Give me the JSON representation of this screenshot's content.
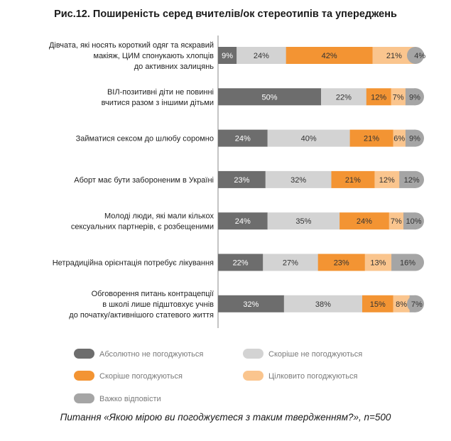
{
  "title": "Рис.12. Поширеність серед вчителів/ок стереотипів та упереджень",
  "caption": "Питання «Якою мірою ви погоджуєтеся з таким твердженням?», n=500",
  "chart_data": {
    "type": "bar",
    "orientation": "horizontal",
    "stacked": true,
    "percent": true,
    "categories": [
      [
        "Дівчата, які носять короткий одяг та яскравий",
        "макіяж, ЦИМ спонукають хлопців",
        "до активних залицянь"
      ],
      [
        "ВІЛ-позитивні діти не повинні",
        "вчитися разом з іншими дітьми"
      ],
      [
        "Займатися сексом до шлюбу соромно"
      ],
      [
        "Аборт має бути забороненим в Україні"
      ],
      [
        "Молоді люди, які мали кількох",
        "сексуальних партнерів, є розбещеними"
      ],
      [
        "Нетрадиційна орієнтація потребує лікування"
      ],
      [
        "Обговорення питань контрацепції",
        "в школі лише підштовхує учнів",
        "до початку/активнішого статевого життя"
      ]
    ],
    "series": [
      {
        "name": "Абсолютно не погоджуються",
        "color": "#6d6d6d",
        "label_color": "#ffffff",
        "values": [
          9,
          50,
          24,
          23,
          24,
          22,
          32
        ]
      },
      {
        "name": "Скоріше не погоджуються",
        "color": "#d3d3d3",
        "label_color": "#333333",
        "values": [
          24,
          22,
          40,
          32,
          35,
          27,
          38
        ]
      },
      {
        "name": "Скоріше погоджуються",
        "color": "#f39433",
        "label_color": "#333333",
        "values": [
          42,
          12,
          21,
          21,
          24,
          23,
          15
        ]
      },
      {
        "name": "Цілковито погоджуються",
        "color": "#fac58e",
        "label_color": "#333333",
        "values": [
          21,
          7,
          6,
          12,
          7,
          13,
          8
        ]
      },
      {
        "name": "Важко відповісти",
        "color": "#a5a5a5",
        "label_color": "#333333",
        "values": [
          4,
          9,
          9,
          12,
          10,
          16,
          7
        ]
      }
    ],
    "xlim": [
      0,
      100
    ],
    "legend_position": "bottom"
  }
}
